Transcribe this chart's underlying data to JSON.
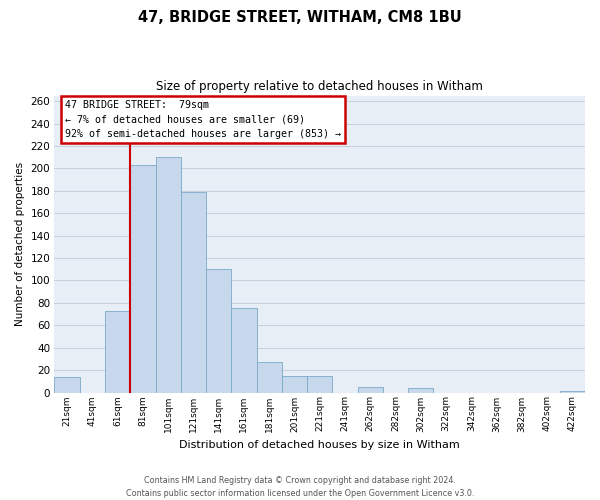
{
  "title": "47, BRIDGE STREET, WITHAM, CM8 1BU",
  "subtitle": "Size of property relative to detached houses in Witham",
  "xlabel": "Distribution of detached houses by size in Witham",
  "ylabel": "Number of detached properties",
  "categories": [
    "21sqm",
    "41sqm",
    "61sqm",
    "81sqm",
    "101sqm",
    "121sqm",
    "141sqm",
    "161sqm",
    "181sqm",
    "201sqm",
    "221sqm",
    "241sqm",
    "262sqm",
    "282sqm",
    "302sqm",
    "322sqm",
    "342sqm",
    "362sqm",
    "382sqm",
    "402sqm",
    "422sqm"
  ],
  "values": [
    14,
    0,
    73,
    203,
    210,
    179,
    110,
    75,
    27,
    15,
    15,
    0,
    5,
    0,
    4,
    0,
    0,
    0,
    0,
    0,
    1
  ],
  "bar_color": "#c8d8ec",
  "bar_edge_color": "#7aaac8",
  "vline_color": "#cc0000",
  "vline_x": 2.5,
  "annotation_title": "47 BRIDGE STREET:  79sqm",
  "annotation_line1": "← 7% of detached houses are smaller (69)",
  "annotation_line2": "92% of semi-detached houses are larger (853) →",
  "ylim": [
    0,
    265
  ],
  "yticks": [
    0,
    20,
    40,
    60,
    80,
    100,
    120,
    140,
    160,
    180,
    200,
    220,
    240,
    260
  ],
  "footer_line1": "Contains HM Land Registry data © Crown copyright and database right 2024.",
  "footer_line2": "Contains public sector information licensed under the Open Government Licence v3.0.",
  "bg_color": "#ffffff",
  "plot_bg_color": "#e8eef5",
  "grid_color": "#c8d0dc",
  "annotation_box_edge": "#cc0000",
  "title_fontsize": 10.5,
  "subtitle_fontsize": 8.5
}
